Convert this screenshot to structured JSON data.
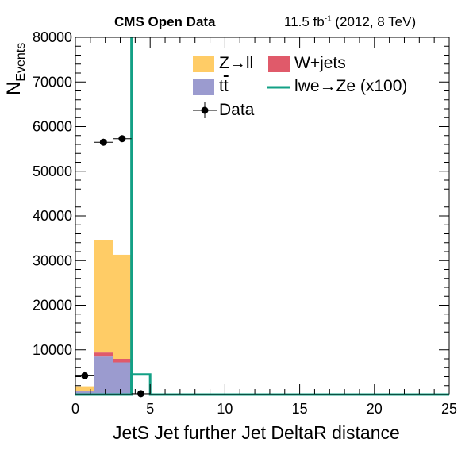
{
  "header": {
    "experiment": "CMS Open Data",
    "lumi_prefix": "11.5 fb",
    "lumi_exp": "-1",
    "lumi_suffix": " (2012, 8 TeV)"
  },
  "axes": {
    "ylabel_main": "N",
    "ylabel_sub": "Events",
    "xlabel": "JetS Jet further Jet DeltaR distance"
  },
  "legend": {
    "zll": "Z→ll",
    "wjets": "W+jets",
    "ttbar_t": "t",
    "ttbar_tbar": "t",
    "signal": "lwe→Ze (x100)",
    "data": "Data"
  },
  "chart_data": {
    "type": "bar",
    "stacked": true,
    "x_edges": [
      0,
      1.25,
      2.5,
      3.75,
      5,
      6.25,
      7.5,
      8.75,
      10,
      11.25,
      12.5,
      13.75,
      15,
      16.25,
      17.5,
      18.75,
      20,
      21.25,
      22.5,
      23.75,
      25
    ],
    "xlim": [
      0,
      25
    ],
    "ylim": [
      0,
      80000
    ],
    "x_ticks": [
      0,
      5,
      10,
      15,
      20,
      25
    ],
    "y_ticks": [
      10000,
      20000,
      30000,
      40000,
      50000,
      60000,
      70000,
      80000
    ],
    "grid": false,
    "legend_position": "top-center",
    "series": [
      {
        "name": "t̅t",
        "key": "ttbar",
        "color": "#9b9bcf",
        "values": [
          700,
          8500,
          7200,
          0,
          0,
          0,
          0,
          0,
          0,
          0,
          0,
          0,
          0,
          0,
          0,
          0,
          0,
          0,
          0,
          0
        ]
      },
      {
        "name": "W+jets",
        "key": "wjets",
        "color": "#e05a6a",
        "values": [
          150,
          900,
          800,
          0,
          0,
          0,
          0,
          0,
          0,
          0,
          0,
          0,
          0,
          0,
          0,
          0,
          0,
          0,
          0,
          0
        ]
      },
      {
        "name": "Z→ll",
        "key": "zll",
        "color": "#ffcc66",
        "values": [
          1000,
          25100,
          23300,
          0,
          0,
          0,
          0,
          0,
          0,
          0,
          0,
          0,
          0,
          0,
          0,
          0,
          0,
          0,
          0,
          0
        ]
      }
    ],
    "signal": {
      "name": "lwe→Ze (x100)",
      "color": "#13a085",
      "values": [
        0,
        0,
        0,
        4500,
        0,
        0,
        0,
        0,
        0,
        0,
        0,
        0,
        0,
        0,
        0,
        0,
        0,
        0,
        0,
        0
      ],
      "vertical_edge_at": 3.75,
      "vertical_edge_top": 80000
    },
    "data": {
      "name": "Data",
      "x": [
        0.625,
        1.875,
        3.125,
        4.375
      ],
      "y": [
        4200,
        56500,
        57300,
        200
      ],
      "xerr": 0.625
    }
  }
}
